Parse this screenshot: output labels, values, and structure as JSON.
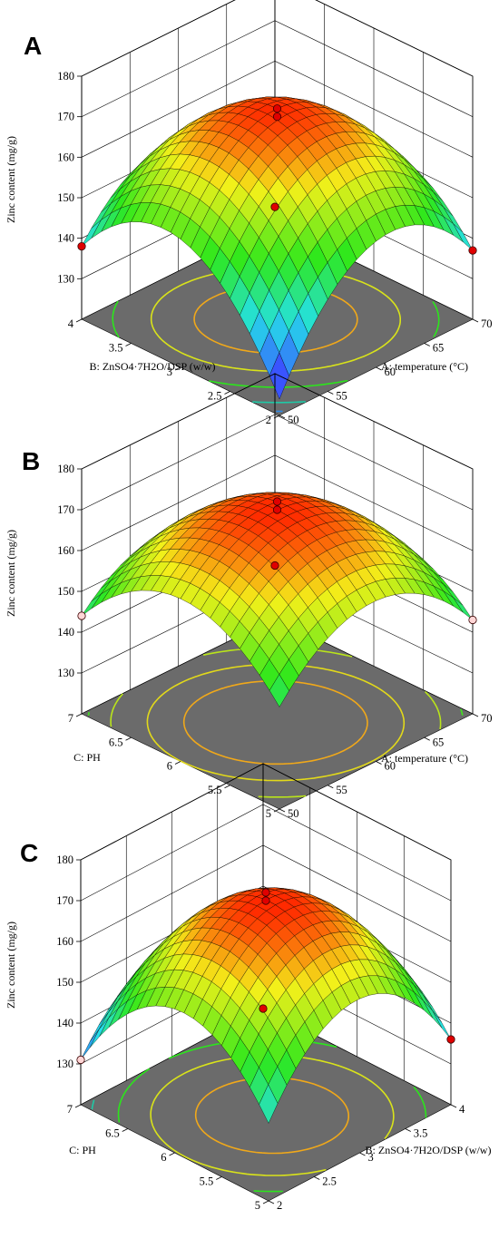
{
  "figure": {
    "panels": [
      {
        "letter": "A",
        "z_title": "Zinc content (mg/g)",
        "left_axis_title": "B: ZnSO4·7H2O/DSP (w/w)",
        "right_axis_title": "A: temperature (°C)"
      },
      {
        "letter": "B",
        "z_title": "Zinc content (mg/g)",
        "left_axis_title": "C: PH",
        "right_axis_title": "A: temperature (°C)"
      },
      {
        "letter": "C",
        "z_title": "Zinc content (mg/g)",
        "left_axis_title": "C: PH",
        "right_axis_title": "B: ZnSO4·7H2O/DSP (w/w)"
      }
    ]
  },
  "colors": {
    "surface_low": "#3b4cff",
    "surface_mid_low": "#25e0e8",
    "surface_mid": "#2ee81c",
    "surface_mid_high": "#f3f01a",
    "surface_high": "#ff2a00",
    "floor": "#6b6b6b",
    "point_fill": "#e00000",
    "point_fill_light": "#ffd6d6"
  },
  "chart_data": [
    {
      "type": "surface3d",
      "panel": "A",
      "title": "",
      "zlabel": "Zinc content (mg/g)",
      "zlim": [
        120,
        180
      ],
      "z_ticks": [
        "130",
        "140",
        "150",
        "160",
        "170",
        "180"
      ],
      "x_axis": {
        "label": "A: temperature (°C)",
        "range": [
          50,
          70
        ],
        "ticks": [
          "50",
          "55",
          "60",
          "65",
          "70"
        ]
      },
      "y_axis": {
        "label": "B: ZnSO4·7H2O/DSP (w/w)",
        "range": [
          2,
          4
        ],
        "ticks": [
          "2",
          "2.5",
          "3",
          "3.5",
          "4"
        ]
      },
      "corners": {
        "x_min_y_min": 124,
        "x_max_y_min": 137,
        "x_min_y_max": 138,
        "x_max_y_max": 124
      },
      "peak": {
        "x": 60,
        "y": 3,
        "z": 172
      },
      "design_points": [
        {
          "x": 60,
          "y": 3,
          "z": 172
        },
        {
          "x": 60,
          "y": 3,
          "z": 170
        },
        {
          "x": 50,
          "y": 4,
          "z": 138
        },
        {
          "x": 70,
          "y": 2,
          "z": 137
        },
        {
          "x": 70,
          "y": 4,
          "z": 124
        }
      ],
      "floor_contours": [
        {
          "level": 166,
          "color": "#f0a81a"
        },
        {
          "level": 158,
          "color": "#d9e31a"
        },
        {
          "level": 148,
          "color": "#2ce51c"
        },
        {
          "level": 136,
          "color": "#1fc9a6"
        },
        {
          "level": 128,
          "color": "#2f8ae8"
        }
      ]
    },
    {
      "type": "surface3d",
      "panel": "B",
      "title": "",
      "zlabel": "Zinc content (mg/g)",
      "zlim": [
        120,
        180
      ],
      "z_ticks": [
        "130",
        "140",
        "150",
        "160",
        "170",
        "180"
      ],
      "x_axis": {
        "label": "A: temperature (°C)",
        "range": [
          50,
          70
        ],
        "ticks": [
          "50",
          "55",
          "60",
          "65",
          "70"
        ]
      },
      "y_axis": {
        "label": "C: PH",
        "range": [
          5,
          7
        ],
        "ticks": [
          "5",
          "5.5",
          "6",
          "6.5",
          "7"
        ]
      },
      "corners": {
        "x_min_y_min": 145,
        "x_max_y_min": 143,
        "x_min_y_max": 144,
        "x_max_y_max": 133
      },
      "peak": {
        "x": 60,
        "y": 6,
        "z": 172
      },
      "design_points": [
        {
          "x": 60,
          "y": 6,
          "z": 172
        },
        {
          "x": 60,
          "y": 6,
          "z": 170
        },
        {
          "x": 50,
          "y": 7,
          "z": 144
        },
        {
          "x": 70,
          "y": 5,
          "z": 143
        },
        {
          "x": 70,
          "y": 7,
          "z": 133
        }
      ],
      "floor_contours": [
        {
          "level": 166,
          "color": "#f0a81a"
        },
        {
          "level": 160,
          "color": "#e2d91a"
        },
        {
          "level": 152,
          "color": "#b9e41a"
        },
        {
          "level": 146,
          "color": "#3fe61c"
        }
      ]
    },
    {
      "type": "surface3d",
      "panel": "C",
      "title": "",
      "zlabel": "Zinc content (mg/g)",
      "zlim": [
        120,
        180
      ],
      "z_ticks": [
        "130",
        "140",
        "150",
        "160",
        "170",
        "180"
      ],
      "x_axis": {
        "label": "B: ZnSO4·7H2O/DSP (w/w)",
        "range": [
          2,
          4
        ],
        "ticks": [
          "2",
          "2.5",
          "3",
          "3.5",
          "4"
        ]
      },
      "y_axis": {
        "label": "C: PH",
        "range": [
          5,
          7
        ],
        "ticks": [
          "5",
          "5.5",
          "6",
          "6.5",
          "7"
        ]
      },
      "corners": {
        "x_min_y_min": 139,
        "x_max_y_min": 136,
        "x_min_y_max": 131,
        "x_max_y_max": 120
      },
      "peak": {
        "x": 3,
        "y": 6,
        "z": 172
      },
      "design_points": [
        {
          "x": 3,
          "y": 6,
          "z": 172
        },
        {
          "x": 3,
          "y": 6,
          "z": 170
        },
        {
          "x": 2,
          "y": 7,
          "z": 131
        },
        {
          "x": 4,
          "y": 5,
          "z": 136
        },
        {
          "x": 4,
          "y": 7,
          "z": 120
        }
      ],
      "floor_contours": [
        {
          "level": 166,
          "color": "#f0a81a"
        },
        {
          "level": 156,
          "color": "#d9e31a"
        },
        {
          "level": 146,
          "color": "#2ce51c"
        },
        {
          "level": 136,
          "color": "#1fc9a6"
        },
        {
          "level": 126,
          "color": "#2f8ae8"
        }
      ]
    }
  ]
}
